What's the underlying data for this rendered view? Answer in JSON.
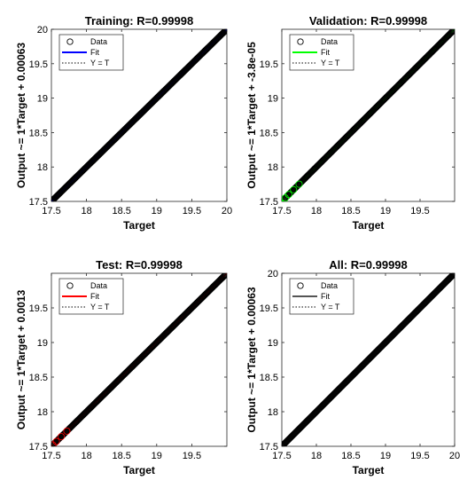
{
  "chart_data": [
    {
      "type": "scatter",
      "title": "Training: R=0.99998",
      "xlabel": "Target",
      "ylabel": "Output ~= 1*Target + 0.00063",
      "xlim": [
        17.5,
        20
      ],
      "ylim": [
        17.5,
        20
      ],
      "xticks": [
        "17.5",
        "18",
        "18.5",
        "19",
        "19.5",
        "20"
      ],
      "yticks": [
        "17.5",
        "18",
        "18.5",
        "19",
        "19.5",
        "20"
      ],
      "fit": {
        "slope": 1,
        "intercept": 0.00063,
        "color": "#0000ff"
      },
      "data_range": [
        17.5,
        20
      ],
      "legend": [
        "Data",
        "Fit",
        "Y = T"
      ],
      "legend_position": "top-left",
      "grid": false
    },
    {
      "type": "scatter",
      "title": "Validation: R=0.99998",
      "xlabel": "Target",
      "ylabel": "Output ~= 1*Target + -3.8e-05",
      "xlim": [
        17.5,
        20
      ],
      "ylim": [
        17.5,
        20
      ],
      "xticks": [
        "17.5",
        "18",
        "18.5",
        "19",
        "19.5"
      ],
      "yticks": [
        "17.5",
        "18",
        "18.5",
        "19",
        "19.5"
      ],
      "fit": {
        "slope": 1,
        "intercept": -3.8e-05,
        "color": "#00ff00"
      },
      "data_range": [
        17.55,
        19.98
      ],
      "legend": [
        "Data",
        "Fit",
        "Y = T"
      ],
      "legend_position": "top-left",
      "grid": false
    },
    {
      "type": "scatter",
      "title": "Test: R=0.99998",
      "xlabel": "Target",
      "ylabel": "Output ~= 1*Target + 0.0013",
      "xlim": [
        17.5,
        20
      ],
      "ylim": [
        17.5,
        20
      ],
      "xticks": [
        "17.5",
        "18",
        "18.5",
        "19",
        "19.5"
      ],
      "yticks": [
        "17.5",
        "18",
        "18.5",
        "19",
        "19.5"
      ],
      "fit": {
        "slope": 1,
        "intercept": 0.0013,
        "color": "#ff0000"
      },
      "data_range": [
        17.52,
        19.98
      ],
      "legend": [
        "Data",
        "Fit",
        "Y = T"
      ],
      "legend_position": "top-left",
      "grid": false
    },
    {
      "type": "scatter",
      "title": "All: R=0.99998",
      "xlabel": "Target",
      "ylabel": "Output ~= 1*Target + 0.00063",
      "xlim": [
        17.5,
        20
      ],
      "ylim": [
        17.5,
        20
      ],
      "xticks": [
        "17.5",
        "18",
        "18.5",
        "19",
        "19.5",
        "20"
      ],
      "yticks": [
        "17.5",
        "18",
        "18.5",
        "19",
        "19.5",
        "20"
      ],
      "fit": {
        "slope": 1,
        "intercept": 0.00063,
        "color": "#555555"
      },
      "data_range": [
        17.5,
        20
      ],
      "legend": [
        "Data",
        "Fit",
        "Y = T"
      ],
      "legend_position": "top-left",
      "grid": false
    }
  ]
}
